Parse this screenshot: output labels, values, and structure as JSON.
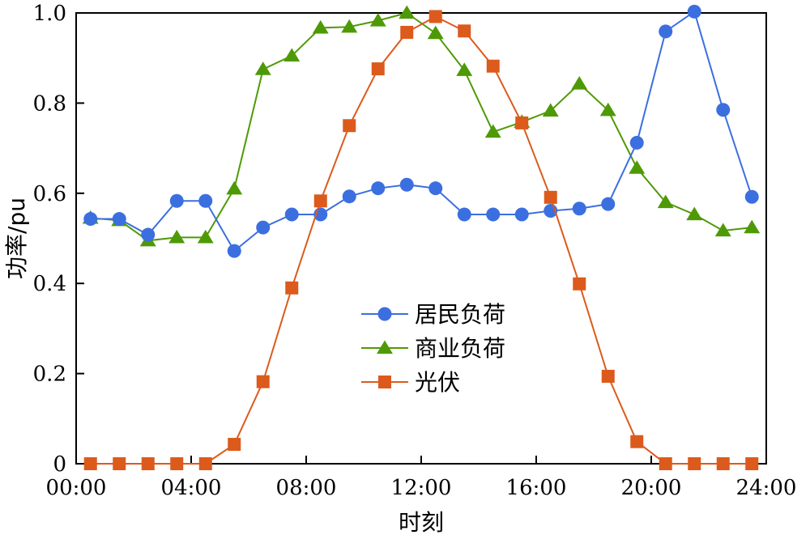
{
  "chart_data": {
    "type": "line",
    "xlabel": "时刻",
    "ylabel": "功率/pu",
    "xlim": [
      0,
      24
    ],
    "ylim": [
      0,
      1.0
    ],
    "x_ticks": [
      0,
      4,
      8,
      12,
      16,
      20,
      24
    ],
    "x_tick_labels": [
      "00:00",
      "04:00",
      "08:00",
      "12:00",
      "16:00",
      "20:00",
      "24:00"
    ],
    "y_ticks": [
      0,
      0.2,
      0.4,
      0.6,
      0.8,
      1.0
    ],
    "y_tick_labels": [
      "0",
      "0.2",
      "0.4",
      "0.6",
      "0.8",
      "1.0"
    ],
    "grid": false,
    "legend_position": "center",
    "x": [
      0.5,
      1.5,
      2.5,
      3.5,
      4.5,
      5.5,
      6.5,
      7.5,
      8.5,
      9.5,
      10.5,
      11.5,
      12.5,
      13.5,
      14.5,
      15.5,
      16.5,
      17.5,
      18.5,
      19.5,
      20.5,
      21.5,
      22.5,
      23.5
    ],
    "series": [
      {
        "name": "居民负荷",
        "color": "#3b6fe0",
        "marker": "circle",
        "values": [
          0.543,
          0.543,
          0.508,
          0.583,
          0.583,
          0.472,
          0.524,
          0.553,
          0.553,
          0.593,
          0.611,
          0.619,
          0.611,
          0.553,
          0.553,
          0.553,
          0.561,
          0.566,
          0.576,
          0.712,
          0.959,
          1.003,
          0.785,
          0.592
        ]
      },
      {
        "name": "商业负荷",
        "color": "#4e9a06",
        "marker": "triangle",
        "values": [
          0.545,
          0.54,
          0.495,
          0.502,
          0.502,
          0.61,
          0.875,
          0.905,
          0.967,
          0.969,
          0.983,
          1.0,
          0.955,
          0.873,
          0.736,
          0.758,
          0.783,
          0.843,
          0.784,
          0.656,
          0.58,
          0.553,
          0.517,
          0.524
        ]
      },
      {
        "name": "光伏",
        "color": "#dc5a1c",
        "marker": "square",
        "values": [
          0,
          0,
          0,
          0,
          0,
          0.043,
          0.182,
          0.39,
          0.583,
          0.75,
          0.876,
          0.957,
          0.992,
          0.96,
          0.882,
          0.756,
          0.591,
          0.399,
          0.194,
          0.049,
          0,
          0,
          0,
          0
        ]
      }
    ]
  }
}
